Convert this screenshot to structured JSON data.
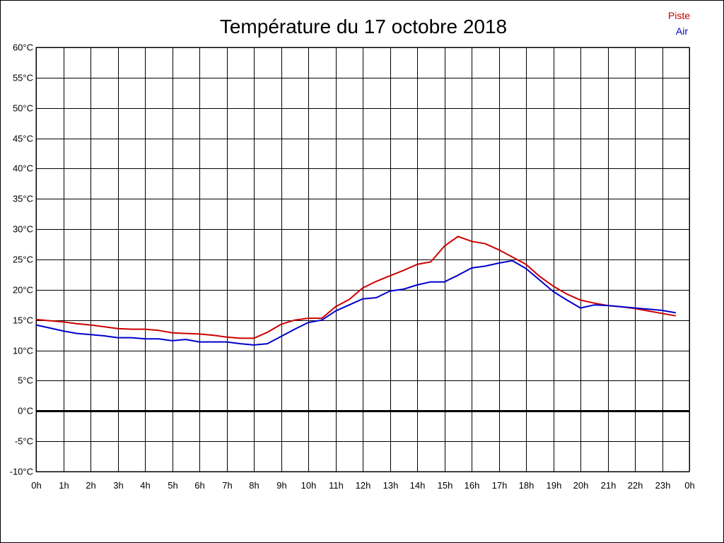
{
  "chart_data": {
    "type": "line",
    "title": "Température du 17 octobre 2018",
    "ylim": [
      -10,
      60
    ],
    "y_ticks": [
      60,
      55,
      50,
      45,
      40,
      35,
      30,
      25,
      20,
      15,
      10,
      5,
      0,
      -5,
      -10
    ],
    "y_tick_labels": [
      "60°C",
      "55°C",
      "50°C",
      "45°C",
      "40°C",
      "35°C",
      "30°C",
      "25°C",
      "20°C",
      "15°C",
      "10°C",
      "5°C",
      "0°C",
      "-5°C",
      "-10°C"
    ],
    "xlim": [
      0,
      24
    ],
    "x_ticks": [
      0,
      1,
      2,
      3,
      4,
      5,
      6,
      7,
      8,
      9,
      10,
      11,
      12,
      13,
      14,
      15,
      16,
      17,
      18,
      19,
      20,
      21,
      22,
      23,
      24
    ],
    "x_tick_labels": [
      "0h",
      "1h",
      "2h",
      "3h",
      "4h",
      "5h",
      "6h",
      "7h",
      "8h",
      "9h",
      "10h",
      "11h",
      "12h",
      "13h",
      "14h",
      "15h",
      "16h",
      "17h",
      "18h",
      "19h",
      "20h",
      "21h",
      "22h",
      "23h",
      "0h"
    ],
    "grid": true,
    "zero_line": true,
    "legend_position": "top-right",
    "series": [
      {
        "name": "Piste",
        "color": "#cc0000",
        "x": [
          0,
          0.5,
          1,
          1.5,
          2,
          2.5,
          3,
          3.5,
          4,
          4.5,
          5,
          5.5,
          6,
          6.5,
          7,
          7.5,
          8,
          8.5,
          9,
          9.5,
          10,
          10.5,
          11,
          11.5,
          12,
          12.5,
          13,
          13.5,
          14,
          14.5,
          15,
          15.5,
          16,
          16.5,
          17,
          17.5,
          18,
          18.5,
          19,
          19.5,
          20,
          20.5,
          21,
          21.5,
          22,
          22.5,
          23,
          23.5
        ],
        "values": [
          15.1,
          14.9,
          14.7,
          14.4,
          14.2,
          13.9,
          13.6,
          13.5,
          13.5,
          13.3,
          12.9,
          12.8,
          12.7,
          12.5,
          12.2,
          12.0,
          12.0,
          13.0,
          14.3,
          15.0,
          15.3,
          15.3,
          17.2,
          18.4,
          20.3,
          21.4,
          22.3,
          23.2,
          24.2,
          24.6,
          27.2,
          28.8,
          28.0,
          27.6,
          26.6,
          25.4,
          24.2,
          22.2,
          20.6,
          19.3,
          18.3,
          17.8,
          17.4,
          17.2,
          16.9,
          16.5,
          16.1,
          15.7
        ]
      },
      {
        "name": "Air",
        "color": "#0000cc",
        "x": [
          0,
          0.5,
          1,
          1.5,
          2,
          2.5,
          3,
          3.5,
          4,
          4.5,
          5,
          5.5,
          6,
          6.5,
          7,
          7.5,
          8,
          8.5,
          9,
          9.5,
          10,
          10.5,
          11,
          11.5,
          12,
          12.5,
          13,
          13.5,
          14,
          14.5,
          15,
          15.5,
          16,
          16.5,
          17,
          17.5,
          18,
          18.5,
          19,
          19.5,
          20,
          20.5,
          21,
          21.5,
          22,
          22.5,
          23,
          23.5
        ],
        "values": [
          14.2,
          13.7,
          13.2,
          12.8,
          12.6,
          12.4,
          12.1,
          12.1,
          11.9,
          11.9,
          11.6,
          11.8,
          11.4,
          11.4,
          11.4,
          11.1,
          10.9,
          11.1,
          12.3,
          13.5,
          14.6,
          15.0,
          16.5,
          17.5,
          18.5,
          18.7,
          19.8,
          20.1,
          20.8,
          21.3,
          21.3,
          22.4,
          23.6,
          23.9,
          24.4,
          24.8,
          23.5,
          21.6,
          19.7,
          18.3,
          17.0,
          17.5,
          17.4,
          17.2,
          17.0,
          16.8,
          16.6,
          16.2
        ]
      }
    ]
  }
}
